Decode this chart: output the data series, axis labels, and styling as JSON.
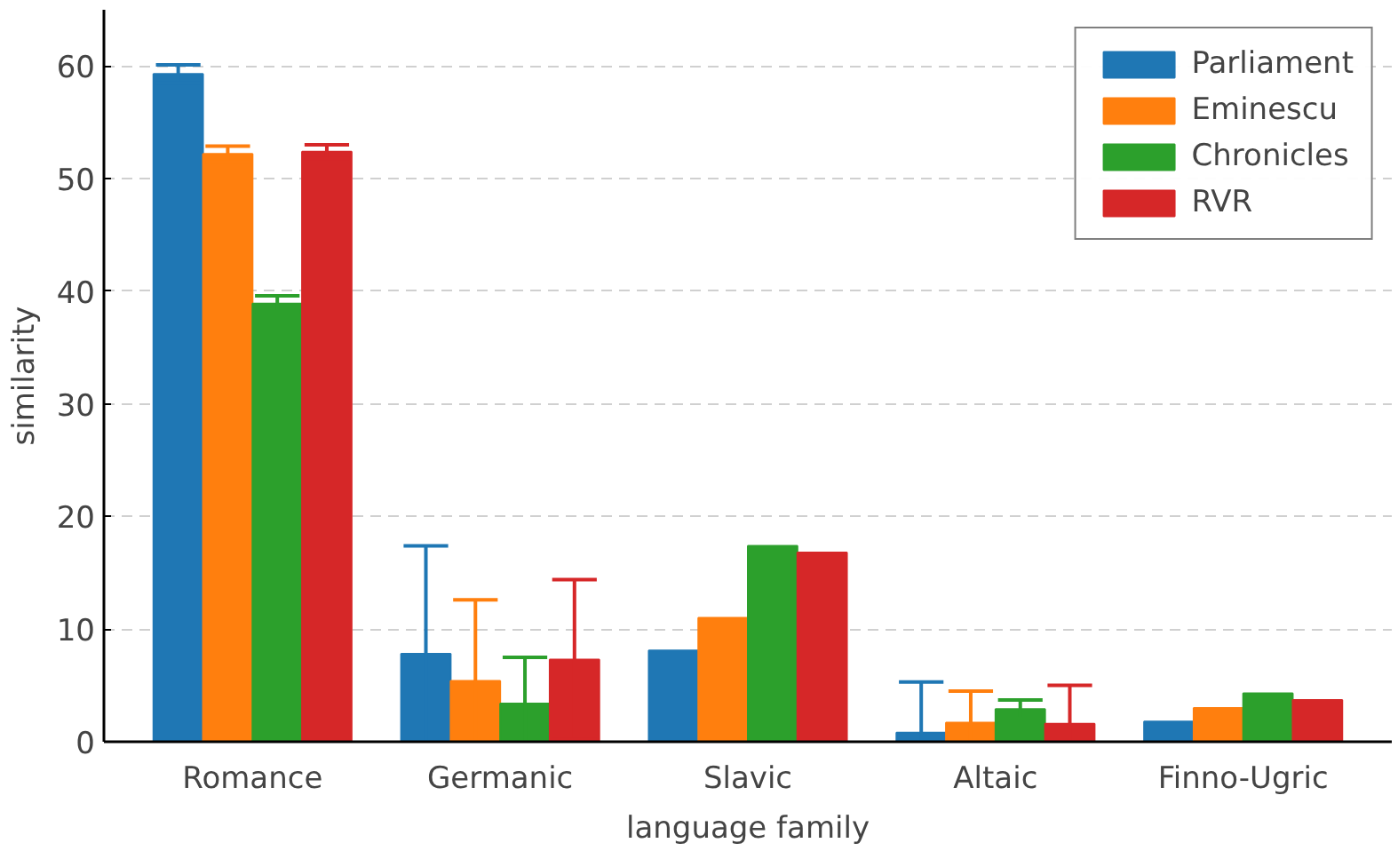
{
  "chart_data": {
    "type": "bar",
    "xlabel": "language family",
    "ylabel": "similarity",
    "categories": [
      "Romance",
      "Germanic",
      "Slavic",
      "Altaic",
      "Finno-Ugric"
    ],
    "series": [
      {
        "name": "Parliament",
        "color": "#1f77b4",
        "values": [
          59.3,
          7.8,
          8.1,
          0.8,
          1.8
        ],
        "errors": [
          0.8,
          9.6,
          null,
          4.5,
          null
        ]
      },
      {
        "name": "Eminescu",
        "color": "#ff7f0e",
        "values": [
          52.2,
          5.4,
          11.0,
          1.7,
          3.0
        ],
        "errors": [
          0.7,
          7.2,
          null,
          2.8,
          null
        ]
      },
      {
        "name": "Chronicles",
        "color": "#2ca02c",
        "values": [
          38.9,
          3.4,
          17.4,
          2.9,
          4.3
        ],
        "errors": [
          0.7,
          4.1,
          null,
          0.8,
          null
        ]
      },
      {
        "name": "RVR",
        "color": "#d62728",
        "values": [
          52.4,
          7.3,
          16.8,
          1.6,
          3.7
        ],
        "errors": [
          0.6,
          7.1,
          null,
          3.4,
          null
        ]
      }
    ],
    "ylim": [
      0,
      65
    ],
    "yticks": [
      0,
      10,
      20,
      30,
      40,
      50,
      60
    ],
    "grid": "y",
    "legend": "top right"
  }
}
